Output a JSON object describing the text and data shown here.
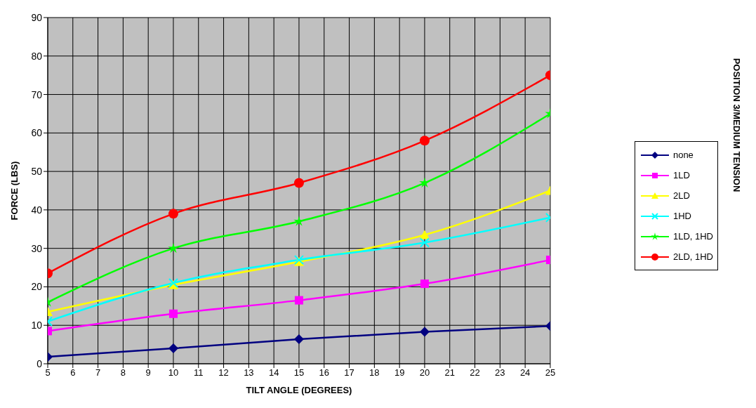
{
  "chart_data": {
    "type": "line",
    "title": "POSITION 3/MEDIUM TENSION",
    "xlabel": "TILT ANGLE (DEGREES)",
    "ylabel": "FORCE (LBS)",
    "x": [
      5,
      10,
      15,
      20,
      25
    ],
    "series": [
      {
        "name": "none",
        "color": "#000080",
        "marker": "diamond",
        "values": [
          1.8,
          4,
          6.4,
          8.3,
          9.8
        ]
      },
      {
        "name": "1LD",
        "color": "#ff00ff",
        "marker": "square",
        "values": [
          8.5,
          13,
          16.5,
          20.8,
          27
        ]
      },
      {
        "name": "2LD",
        "color": "#ffff00",
        "marker": "triangle",
        "values": [
          13.5,
          20.5,
          26.5,
          33.5,
          45
        ]
      },
      {
        "name": "1HD",
        "color": "#00ffff",
        "marker": "cross",
        "values": [
          11,
          21,
          27,
          31.5,
          38
        ]
      },
      {
        "name": "1LD, 1HD",
        "color": "#00ff00",
        "marker": "star",
        "values": [
          16,
          30,
          37,
          47,
          65
        ]
      },
      {
        "name": "2LD, 1HD",
        "color": "#ff0000",
        "marker": "circle",
        "values": [
          23.5,
          39,
          47,
          58,
          75
        ]
      }
    ],
    "xlim": [
      5,
      25
    ],
    "xticks": [
      5,
      6,
      7,
      8,
      9,
      10,
      11,
      12,
      13,
      14,
      15,
      16,
      17,
      18,
      19,
      20,
      21,
      22,
      23,
      24,
      25
    ],
    "ylim": [
      0,
      90
    ],
    "yticks": [
      0,
      10,
      20,
      30,
      40,
      50,
      60,
      70,
      80,
      90
    ],
    "grid": true,
    "legend": "right",
    "line_style": "solid"
  }
}
